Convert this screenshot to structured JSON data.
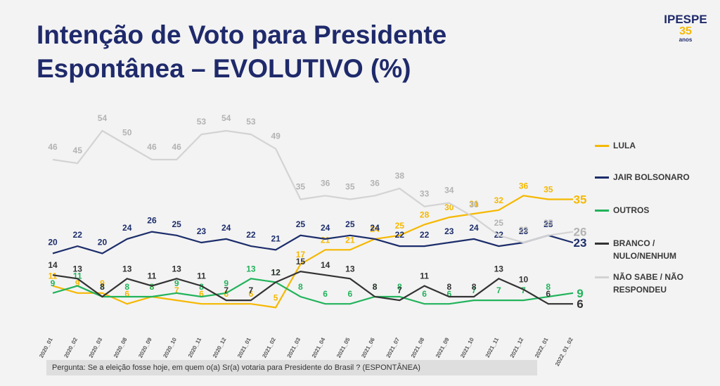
{
  "chart_data": {
    "type": "line",
    "title_lines": [
      "Intenção de Voto para Presidente",
      "Espontânea – EVOLUTIVO (%)"
    ],
    "logo": {
      "name": "IPESPE",
      "number": "35",
      "suffix": "anos"
    },
    "footnote": "Pergunta:  Se a eleição fosse hoje, em quem o(a) Sr(a) votaria para  Presidente do Brasil ? (ESPONTÂNEA)",
    "categories": [
      "2020_01",
      "2020_02",
      "2020_03",
      "2020_08",
      "2020_09",
      "2020_10",
      "2020_11",
      "2020_12",
      "2021_01",
      "2021_02",
      "2021_03",
      "2021_04",
      "2021_05",
      "2021_06",
      "2021_07",
      "2021_08",
      "2021_09",
      "2021_10",
      "2021_11",
      "2021_12",
      "2022_01",
      "2022_01_02"
    ],
    "series": [
      {
        "name": "LULA",
        "color": "#f5b800",
        "values": [
          11,
          9,
          9,
          6,
          8,
          7,
          6,
          6,
          6,
          5,
          17,
          21,
          21,
          24,
          25,
          28,
          30,
          31,
          32,
          36,
          35,
          35
        ]
      },
      {
        "name": "JAIR BOLSONARO",
        "color": "#1c2d6b",
        "values": [
          20,
          22,
          20,
          24,
          26,
          25,
          23,
          24,
          22,
          21,
          25,
          24,
          25,
          24,
          22,
          22,
          23,
          24,
          22,
          23,
          25,
          23
        ]
      },
      {
        "name": "OUTROS",
        "color": "#22b35b",
        "values": [
          9,
          11,
          8,
          8,
          8,
          9,
          8,
          9,
          13,
          12,
          8,
          6,
          6,
          8,
          8,
          6,
          6,
          7,
          7,
          7,
          8,
          9
        ]
      },
      {
        "name": "BRANCO / NULO/NENHUM",
        "color": "#333333",
        "values": [
          14,
          13,
          8,
          13,
          11,
          13,
          11,
          7,
          7,
          12,
          15,
          14,
          13,
          8,
          7,
          11,
          8,
          8,
          13,
          10,
          6,
          6
        ]
      },
      {
        "name": "NÃO SABE / NÃO RESPONDEU",
        "color": "#d3d3d3",
        "values": [
          46,
          45,
          54,
          50,
          46,
          46,
          53,
          54,
          53,
          49,
          35,
          36,
          35,
          36,
          38,
          33,
          34,
          30,
          25,
          23,
          25,
          26
        ]
      }
    ]
  }
}
